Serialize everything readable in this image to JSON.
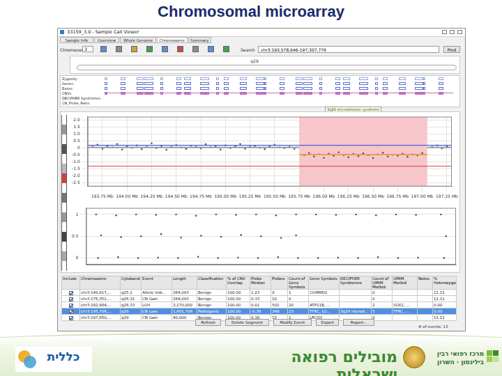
{
  "slide": {
    "title": "Chromosomal microarray",
    "footer": {
      "left_logo": "כללית",
      "center": "מובילים רפואה ישראלית",
      "right_logo": [
        "מרכז רפואי רבין",
        "בילינסון · השרון"
      ]
    }
  },
  "window": {
    "title": "33159_3.0 - Sample Call Viewer",
    "tabs": [
      "Sample Info",
      "Overview",
      "Whole Genome",
      "Chromosome",
      "Summary"
    ],
    "active_tab": "Chromosome",
    "toolbar": {
      "chromosome_label": "Chromosome",
      "chromosome": "3",
      "search_label": "Search",
      "search": "chr3:193,578,646-197,307,779",
      "find": "Find"
    },
    "band_label": "q29",
    "tracks": [
      "Zygosity",
      "Genes",
      "Exons",
      "CNVs",
      "DECIPHER Syndromes",
      "CN_Probe_Ratio"
    ],
    "syndrome_label": "3q29 microdeletion syndrome"
  },
  "chart_data": [
    {
      "type": "scatter",
      "color": "#555555",
      "x": [
        193.65,
        193.7,
        193.75,
        193.8,
        193.85,
        193.9,
        193.95,
        194,
        194.05,
        194.1,
        194.15,
        194.2,
        194.25,
        194.3,
        194.35,
        194.4,
        194.45,
        194.5,
        194.55,
        194.6,
        194.65,
        194.7,
        194.75,
        194.8,
        194.85,
        194.9,
        194.95,
        195,
        195.05,
        195.1,
        195.15,
        195.2,
        195.25,
        195.3,
        195.35,
        195.4,
        195.45,
        195.5,
        195.55,
        195.6,
        195.65,
        195.7,
        195.8,
        195.85,
        195.9,
        195.95,
        196,
        196.05,
        196.1,
        196.15,
        196.2,
        196.25,
        196.3,
        196.35,
        196.4,
        196.45,
        196.5,
        196.55,
        196.6,
        196.65,
        196.7,
        196.75,
        196.8,
        196.85,
        196.9,
        196.95,
        197,
        197.1,
        197.15,
        197.2,
        197.25
      ],
      "values": [
        0.1,
        0.25,
        -0.05,
        0.15,
        0.05,
        0.3,
        -0.1,
        0.12,
        0.02,
        0.2,
        -0.08,
        0.1,
        0.35,
        0,
        0.15,
        -0.12,
        0.08,
        0.22,
        0.04,
        -0.06,
        0.18,
        0.1,
        -0.02,
        0.28,
        0.06,
        0.12,
        -0.1,
        0.2,
        0,
        0.14,
        0.3,
        -0.04,
        0.1,
        0.16,
        0.02,
        -0.08,
        0.12,
        0.24,
        0.05,
        0,
        0.1,
        -0.05,
        -0.5,
        -0.35,
        -0.6,
        -0.45,
        -0.7,
        -0.4,
        -0.55,
        -0.3,
        -0.5,
        -0.65,
        -0.42,
        -0.58,
        -0.38,
        -0.5,
        -0.72,
        -0.45,
        -0.33,
        -0.6,
        -0.48,
        -0.55,
        -0.4,
        -0.62,
        -0.46,
        -0.52,
        -0.36,
        0.08,
        0.2,
        -0.02,
        0.12
      ],
      "xlim": [
        193.6,
        197.3
      ],
      "xticks": [
        {
          "value": 193.75,
          "label": "193.75 Mb"
        },
        {
          "value": 194,
          "label": "194.00 Mb"
        },
        {
          "value": 194.25,
          "label": "194.25 Mb"
        },
        {
          "value": 194.5,
          "label": "194.50 Mb"
        },
        {
          "value": 194.75,
          "label": "194.75 Mb"
        },
        {
          "value": 195,
          "label": "195.00 Mb"
        },
        {
          "value": 195.25,
          "label": "195.25 Mb"
        },
        {
          "value": 195.5,
          "label": "195.50 Mb"
        },
        {
          "value": 195.75,
          "label": "195.75 Mb"
        },
        {
          "value": 196,
          "label": "196.00 Mb"
        },
        {
          "value": 196.25,
          "label": "196.25 Mb"
        },
        {
          "value": 196.5,
          "label": "196.50 Mb"
        },
        {
          "value": 196.75,
          "label": "196.75 Mb"
        },
        {
          "value": 197,
          "label": "197.00 Mb"
        },
        {
          "value": 197.25,
          "label": "197.25 Mb"
        }
      ],
      "ylim": [
        -2.75,
        2.25
      ],
      "yticks": [
        {
          "value": 2,
          "label": "2.0"
        },
        1.5,
        {
          "value": 1,
          "label": "1.0"
        },
        0.5,
        0,
        -0.5,
        {
          "value": -1,
          "label": "-1.0"
        },
        -1.5,
        {
          "value": -2,
          "label": "-2.0"
        },
        -2.5
      ],
      "grid": true,
      "highlight": {
        "x": [
          195.75,
          197.05
        ],
        "color": "#f7c6cb"
      },
      "reference_lines": [
        {
          "value": 0.2,
          "color": "#4a5fd8"
        },
        {
          "value": -1.3,
          "color": "#d83a3a"
        }
      ],
      "segments": [
        {
          "x": [
            193.6,
            195.75
          ],
          "value": 0.05,
          "color": "#9aa0a8"
        },
        {
          "x": [
            195.75,
            197.05
          ],
          "value": -0.47,
          "color": "#e8a040"
        },
        {
          "x": [
            197.05,
            197.3
          ],
          "value": 0.05,
          "color": "#9aa0a8"
        }
      ]
    },
    {
      "type": "scatter",
      "color": "#555555",
      "x": [
        193.7,
        193.9,
        194.1,
        194.3,
        194.5,
        194.7,
        194.9,
        195.1,
        195.3,
        195.5,
        195.7,
        195.9,
        196.1,
        196.3,
        196.5,
        196.7,
        196.9,
        197.15,
        193.75,
        193.95,
        194.15,
        194.35,
        194.55,
        194.75,
        194.95,
        195.15,
        195.35,
        195.55,
        195.7,
        197.2,
        193.72,
        193.92,
        194.12,
        194.32,
        194.52,
        194.72,
        194.92,
        195.12,
        195.32,
        195.52,
        195.72,
        195.92,
        196.12,
        196.32,
        196.52,
        196.72,
        196.92,
        197.18
      ],
      "values": [
        1,
        0.98,
        1,
        0.99,
        1,
        0.97,
        1,
        0.99,
        1,
        0.98,
        1,
        1,
        0.99,
        1,
        0.98,
        1,
        0.99,
        1,
        0.52,
        0.48,
        0.5,
        0.55,
        0.47,
        0.51,
        0.49,
        0.53,
        0.5,
        0.46,
        0.52,
        0.5,
        0,
        0.02,
        0,
        0.01,
        0,
        0.03,
        0,
        0.01,
        0,
        0.02,
        0,
        0,
        0.01,
        0,
        0.02,
        0,
        0.01,
        0
      ],
      "xlim": [
        193.6,
        197.3
      ],
      "ylim": [
        -0.15,
        1.15
      ],
      "yticks": [
        0,
        0.5,
        1
      ],
      "tick_labels": "y",
      "grid": true
    }
  ],
  "table": {
    "columns": [
      "Include",
      "Chromosome",
      "Cytoband",
      "Event",
      "Length",
      "Classification",
      "% of CNV Overlap",
      "Probe Median",
      "Probes",
      "Count of Gene Symbols",
      "Gene Symbols",
      "DECIPHER Syndromes",
      "Count of OMIM Morbid",
      "OMIM Morbid",
      "Notes",
      "% Heterozygous"
    ],
    "rows": [
      {
        "include": true,
        "selected": false,
        "cells": [
          "chr3:149,817,...",
          "q25.1",
          "Allelic Imb...",
          "264,093",
          "Benign",
          "100.00",
          "1.23",
          "9",
          "1",
          "COMMD2",
          "",
          "0",
          "",
          "",
          "11.11"
        ]
      },
      {
        "include": true,
        "selected": false,
        "cells": [
          "chr3:176,351,...",
          "q26.31",
          "CN Gain",
          "264,093",
          "Benign",
          "100.00",
          "0.33",
          "10",
          "0",
          "",
          "",
          "0",
          "",
          "",
          "11.11"
        ]
      },
      {
        "include": true,
        "selected": false,
        "cells": [
          "chr3:182,884,...",
          "q26.33",
          "LOH",
          "3,170,000",
          "Benign",
          "100.00",
          "0.01",
          "502",
          "20",
          "ATP11B, ...",
          "",
          "2",
          "SOX2, ...",
          "",
          "0.00"
        ]
      },
      {
        "include": true,
        "selected": true,
        "cells": [
          "chr3:195,706,...",
          "q29",
          "CN Loss",
          "1,601,706",
          "Pathogenic",
          "100.00",
          "-0.36",
          "348",
          "23",
          "TFRC, LO...",
          "3q29 microd...",
          "5",
          "TFRC, ...",
          "",
          "0.00"
        ]
      },
      {
        "include": true,
        "selected": false,
        "cells": [
          "chr3:197,850,...",
          "q29",
          "CN Gain",
          "40,000",
          "Benign",
          "100.00",
          "0.38",
          "15",
          "1",
          "LRCH3",
          "",
          "0",
          "",
          "",
          "11.11"
        ]
      }
    ]
  },
  "buttons": [
    "Refresh",
    "Delete Segment",
    "Modify Event",
    "Export",
    "Report..."
  ],
  "event_count": "# of events: 13"
}
